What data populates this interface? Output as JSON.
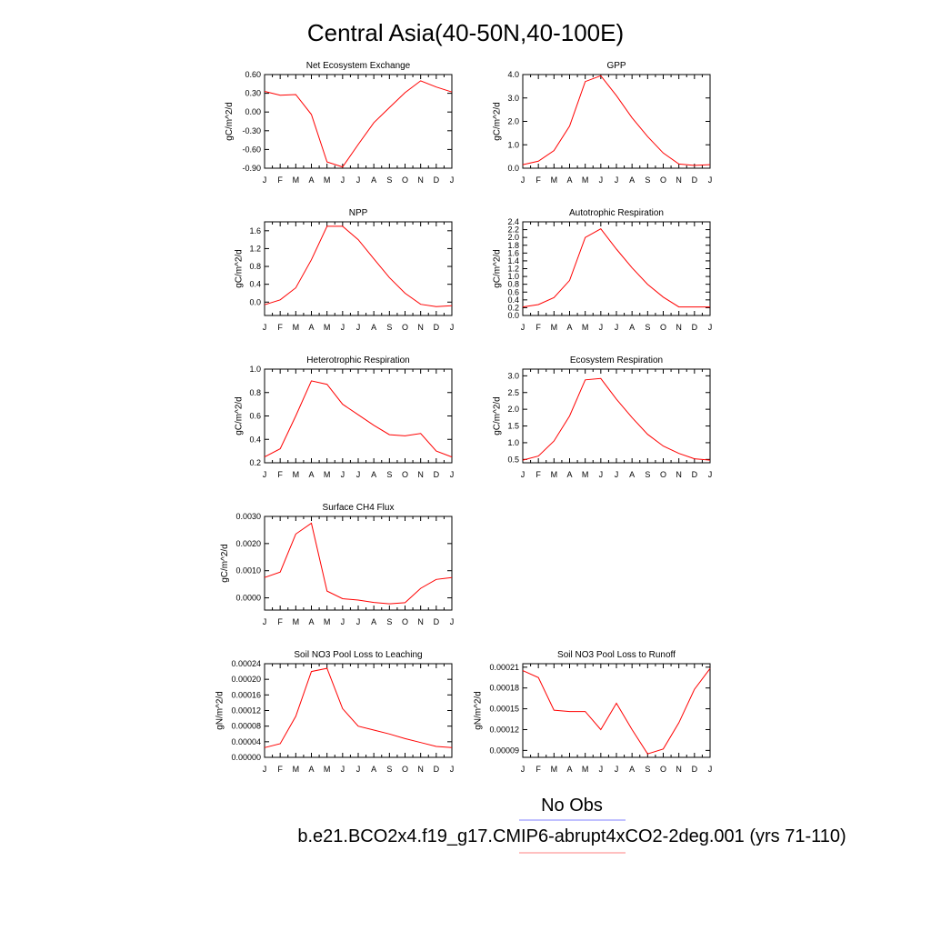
{
  "page": {
    "title": "Central Asia(40-50N,40-100E)",
    "legend": [
      {
        "label": "No Obs",
        "color": "#8080ff"
      },
      {
        "label": "b.e21.BCO2x4.f19_g17.CMIP6-abrupt4xCO2-2deg.001 (yrs 71-110)",
        "color": "#ff8080"
      }
    ],
    "series_color": "#ff0000"
  },
  "chart_data": [
    {
      "type": "line",
      "title": "Net Ecosystem Exchange",
      "ylabel": "gC/m^2/d",
      "xlabels": [
        "J",
        "F",
        "M",
        "A",
        "M",
        "J",
        "J",
        "A",
        "S",
        "O",
        "N",
        "D",
        "J"
      ],
      "ylim": [
        -0.9,
        0.6
      ],
      "yticks": [
        0.6,
        0.3,
        0.0,
        -0.3,
        -0.6,
        -0.9
      ],
      "ytick_labels": [
        "0.60",
        "0.30",
        "0.00",
        "-0.30",
        "-0.60",
        "-0.90"
      ],
      "values": [
        0.33,
        0.27,
        0.28,
        -0.04,
        -0.8,
        -0.88,
        -0.52,
        -0.17,
        0.07,
        0.31,
        0.5,
        0.4,
        0.32
      ]
    },
    {
      "type": "line",
      "title": "GPP",
      "ylabel": "gC/m^2/d",
      "xlabels": [
        "J",
        "F",
        "M",
        "A",
        "M",
        "J",
        "J",
        "A",
        "S",
        "O",
        "N",
        "D",
        "J"
      ],
      "ylim": [
        0.0,
        4.0
      ],
      "yticks": [
        4.0,
        3.0,
        2.0,
        1.0,
        0.0
      ],
      "ytick_labels": [
        "4.0",
        "3.0",
        "2.0",
        "1.0",
        "0.0"
      ],
      "values": [
        0.15,
        0.3,
        0.75,
        1.8,
        3.7,
        3.95,
        3.1,
        2.15,
        1.35,
        0.65,
        0.18,
        0.12,
        0.15
      ]
    },
    {
      "type": "line",
      "title": "NPP",
      "ylabel": "gC/m^2/d",
      "xlabels": [
        "J",
        "F",
        "M",
        "A",
        "M",
        "J",
        "J",
        "A",
        "S",
        "O",
        "N",
        "D",
        "J"
      ],
      "ylim": [
        -0.3,
        1.8
      ],
      "yticks": [
        1.6,
        1.2,
        0.8,
        0.4,
        0.0
      ],
      "ytick_labels": [
        "1.6",
        "1.2",
        "0.8",
        "0.4",
        "0.0"
      ],
      "values": [
        -0.06,
        0.05,
        0.32,
        0.95,
        1.7,
        1.7,
        1.4,
        0.97,
        0.55,
        0.2,
        -0.05,
        -0.1,
        -0.08
      ]
    },
    {
      "type": "line",
      "title": "Autotrophic Respiration",
      "ylabel": "gC/m^2/d",
      "xlabels": [
        "J",
        "F",
        "M",
        "A",
        "M",
        "J",
        "J",
        "A",
        "S",
        "O",
        "N",
        "D",
        "J"
      ],
      "ylim": [
        0.0,
        2.4
      ],
      "yticks": [
        2.4,
        2.2,
        2.0,
        1.8,
        1.6,
        1.4,
        1.2,
        1.0,
        0.8,
        0.6,
        0.4,
        0.2,
        0.0
      ],
      "ytick_labels": [
        "2.4",
        "2.2",
        "2.0",
        "1.8",
        "1.6",
        "1.4",
        "1.2",
        "1.0",
        "0.8",
        "0.6",
        "0.4",
        "0.2",
        "0.0"
      ],
      "values": [
        0.22,
        0.28,
        0.46,
        0.9,
        2.0,
        2.22,
        1.7,
        1.22,
        0.8,
        0.47,
        0.22,
        0.22,
        0.22
      ]
    },
    {
      "type": "line",
      "title": "Heterotrophic Respiration",
      "ylabel": "gC/m^2/d",
      "xlabels": [
        "J",
        "F",
        "M",
        "A",
        "M",
        "J",
        "J",
        "A",
        "S",
        "O",
        "N",
        "D",
        "J"
      ],
      "ylim": [
        0.2,
        1.0
      ],
      "yticks": [
        1.0,
        0.8,
        0.6,
        0.4,
        0.2
      ],
      "ytick_labels": [
        "1.0",
        "0.8",
        "0.6",
        "0.4",
        "0.2"
      ],
      "values": [
        0.25,
        0.32,
        0.6,
        0.9,
        0.87,
        0.7,
        0.61,
        0.52,
        0.44,
        0.43,
        0.45,
        0.3,
        0.25
      ]
    },
    {
      "type": "line",
      "title": "Ecosystem Respiration",
      "ylabel": "gC/m^2/d",
      "xlabels": [
        "J",
        "F",
        "M",
        "A",
        "M",
        "J",
        "J",
        "A",
        "S",
        "O",
        "N",
        "D",
        "J"
      ],
      "ylim": [
        0.4,
        3.2
      ],
      "yticks": [
        3.0,
        2.5,
        2.0,
        1.5,
        1.0,
        0.5
      ],
      "ytick_labels": [
        "3.0",
        "2.5",
        "2.0",
        "1.5",
        "1.0",
        "0.5"
      ],
      "values": [
        0.48,
        0.6,
        1.05,
        1.8,
        2.88,
        2.92,
        2.3,
        1.75,
        1.25,
        0.9,
        0.68,
        0.52,
        0.48
      ]
    },
    {
      "type": "line",
      "title": "Surface CH4 Flux",
      "ylabel": "gC/m^2/d",
      "xlabels": [
        "J",
        "F",
        "M",
        "A",
        "M",
        "J",
        "J",
        "A",
        "S",
        "O",
        "N",
        "D",
        "J"
      ],
      "ylim": [
        -0.00045,
        0.003
      ],
      "yticks": [
        0.003,
        0.002,
        0.001,
        0.0
      ],
      "ytick_labels": [
        "0.0030",
        "0.0020",
        "0.0010",
        "0.0000"
      ],
      "values": [
        0.00075,
        0.00095,
        0.00235,
        0.00275,
        0.00025,
        -3e-05,
        -8e-05,
        -0.00017,
        -0.00022,
        -0.00018,
        0.00035,
        0.00068,
        0.00075
      ]
    },
    {
      "type": "line",
      "title": "Soil NO3 Pool Loss to Leaching",
      "ylabel": "gN/m^2/d",
      "xlabels": [
        "J",
        "F",
        "M",
        "A",
        "M",
        "J",
        "J",
        "A",
        "S",
        "O",
        "N",
        "D",
        "J"
      ],
      "ylim": [
        0.0,
        0.00024
      ],
      "yticks": [
        0.00024,
        0.0002,
        0.00016,
        0.00012,
        8e-05,
        4e-05,
        0.0
      ],
      "ytick_labels": [
        "0.00024",
        "0.00020",
        "0.00016",
        "0.00012",
        "0.00008",
        "0.00004",
        "0.00000"
      ],
      "values": [
        2.5e-05,
        3.5e-05,
        0.000105,
        0.00022,
        0.000228,
        0.000125,
        8e-05,
        7e-05,
        6e-05,
        4.8e-05,
        3.8e-05,
        2.8e-05,
        2.5e-05
      ]
    },
    {
      "type": "line",
      "title": "Soil NO3 Pool Loss to Runoff",
      "ylabel": "gN/m^2/d",
      "xlabels": [
        "J",
        "F",
        "M",
        "A",
        "M",
        "J",
        "J",
        "A",
        "S",
        "O",
        "N",
        "D",
        "J"
      ],
      "ylim": [
        8e-05,
        0.000215
      ],
      "yticks": [
        0.00021,
        0.00018,
        0.00015,
        0.00012,
        9e-05
      ],
      "ytick_labels": [
        "0.00021",
        "0.00018",
        "0.00015",
        "0.00012",
        "0.00009"
      ],
      "values": [
        0.000205,
        0.000195,
        0.000148,
        0.000146,
        0.000146,
        0.00012,
        0.000158,
        0.00012,
        8.5e-05,
        9.2e-05,
        0.00013,
        0.000178,
        0.000208
      ]
    }
  ]
}
